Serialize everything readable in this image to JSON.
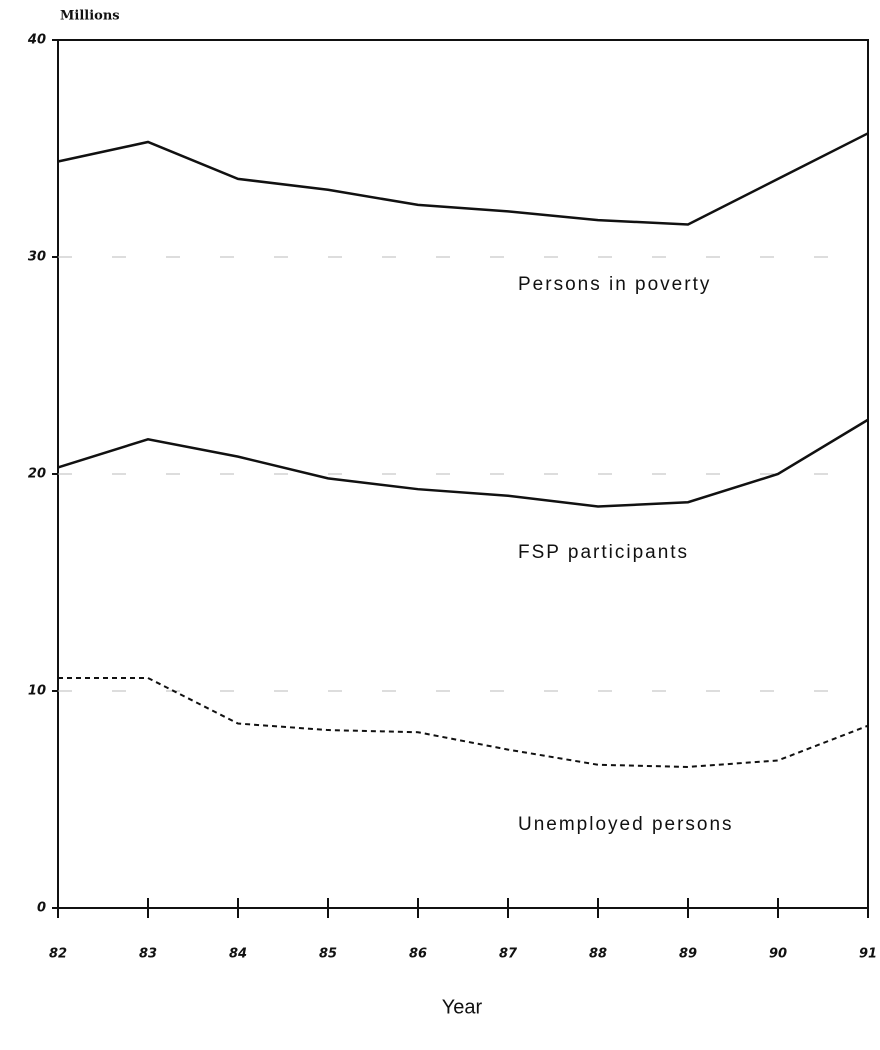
{
  "chart_data": {
    "type": "line",
    "y_label": "Millions",
    "x_label": "Year",
    "x": [
      82,
      83,
      84,
      85,
      86,
      87,
      88,
      89,
      90,
      91
    ],
    "xlim": [
      82,
      91
    ],
    "xticks": [
      82,
      83,
      84,
      85,
      86,
      87,
      88,
      89,
      90,
      91
    ],
    "ylim": [
      0,
      40
    ],
    "yticks": [
      0,
      10,
      20,
      30,
      40
    ],
    "grid": true,
    "series": [
      {
        "name": "Persons in poverty",
        "color": "#111111",
        "style": "solid",
        "values": [
          34.4,
          35.3,
          33.6,
          33.1,
          32.4,
          32.1,
          31.7,
          31.5,
          33.6,
          35.7
        ]
      },
      {
        "name": "FSP participants",
        "color": "#111111",
        "style": "solid",
        "values": [
          20.3,
          21.6,
          20.8,
          19.8,
          19.3,
          19.0,
          18.5,
          18.7,
          20.0,
          22.5
        ]
      },
      {
        "name": "Unemployed persons",
        "color": "#111111",
        "style": "dashed",
        "values": [
          10.6,
          10.6,
          8.5,
          8.2,
          8.1,
          7.3,
          6.6,
          6.5,
          6.8,
          8.4
        ]
      }
    ]
  }
}
